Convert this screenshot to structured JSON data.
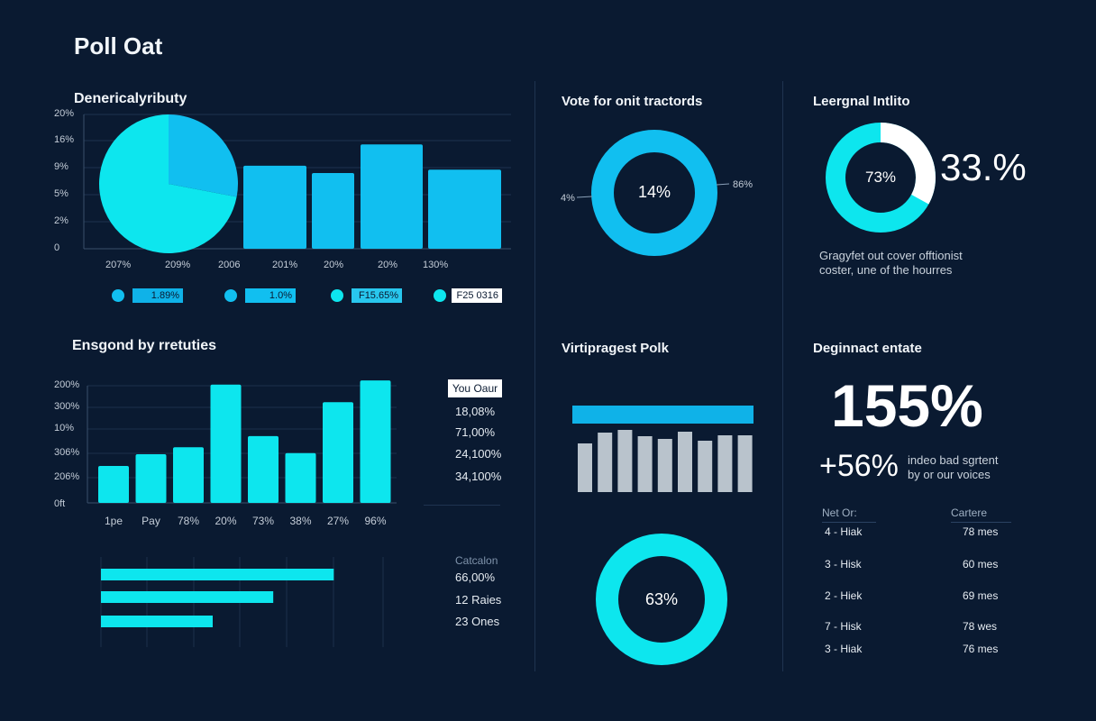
{
  "page_title": "Poll Oat",
  "colors": {
    "background": "#0a1a31",
    "cyan": "#0de6ee",
    "blue": "#11bff0",
    "gray": "#b9c3cc",
    "white": "#ffffff"
  },
  "panel1": {
    "title": "Denericalyributy",
    "legend": [
      {
        "label": "1.89%",
        "box": "#0fb2e8",
        "text": "#0a1a31"
      },
      {
        "label": "1.0%",
        "box": "#11bff0",
        "text": "#0a1a31"
      },
      {
        "label": "F15.65%",
        "box": "#28c7ee",
        "text": "#0a1a31"
      },
      {
        "label": "F25 0316",
        "box": "#ffffff",
        "text": "#0a1a31"
      }
    ]
  },
  "panel2": {
    "title": "Ensgond by rretuties",
    "side_header": "You Oaur",
    "side_values": [
      "18,08%",
      "71,00%",
      "24,100%",
      "34,100%"
    ],
    "hbar_header": "Catcalon",
    "hbar_values": [
      "66,00%",
      "12 Raies",
      "23 Ones"
    ]
  },
  "panel3": {
    "title": "Vote for onit tractords",
    "donut_center": "14%",
    "label_left": "4%",
    "label_right": "86%",
    "title2": "Virtipragest Polk",
    "donut2_center": "63%"
  },
  "panel4": {
    "title": "Leergnal Intlito",
    "donut_center": "73%",
    "big_value": "33.%",
    "description": [
      "Gragyfet out cover offtionist",
      "coster, une of the hourres"
    ],
    "title2": "Deginnact entate",
    "hero_value": "155%",
    "delta": "+56%",
    "delta_text": [
      "indeo bad sgrtent",
      "by or our voices"
    ],
    "table": {
      "headers": [
        "Net Or:",
        "Cartere"
      ],
      "rows": [
        [
          "4 - Hiak",
          "78 mes"
        ],
        [
          "3 - Hisk",
          "60 mes"
        ],
        [
          "2 - Hiek",
          "69 mes"
        ],
        [
          "7 - Hisk",
          "78 wes"
        ],
        [
          "3 - Hiak",
          "76 mes"
        ]
      ]
    }
  },
  "chart_data": [
    {
      "type": "bar",
      "title": "Denericalyributy",
      "yticks": [
        "0",
        "2%",
        "5%",
        "9%",
        "16%",
        "20%"
      ],
      "ytick_values": [
        0,
        2,
        5,
        9,
        16,
        20
      ],
      "ylim": [
        0,
        20
      ],
      "xticks": [
        "207%",
        "209%",
        "2006",
        "201%",
        "20%",
        "20%",
        "130%"
      ],
      "values": [
        9.5,
        8.2,
        15,
        8.7
      ],
      "grid": true
    },
    {
      "type": "pie",
      "values": [
        72,
        28
      ],
      "colors": [
        "#0de6ee",
        "#11bff0"
      ]
    },
    {
      "type": "bar",
      "title": "Ensgond by rretuties",
      "yticks": [
        "0ft",
        "206%",
        "306%",
        "10%",
        "300%",
        "200%"
      ],
      "ylim": [
        0,
        200
      ],
      "categories": [
        "1pe",
        "Pay",
        "78%",
        "20%",
        "73%",
        "38%",
        "27%",
        "96%"
      ],
      "values": [
        63,
        83,
        95,
        202,
        114,
        85,
        172,
        209
      ],
      "grid": true
    },
    {
      "type": "bar",
      "orientation": "horizontal",
      "values": [
        5.0,
        3.7,
        2.4
      ],
      "xlim": [
        0,
        6
      ],
      "grid": true
    },
    {
      "type": "pie",
      "donut": true,
      "title": "Vote for onit tractords",
      "values": [
        100
      ],
      "center_label": "14%"
    },
    {
      "type": "bar",
      "title": "Virtipragest Polk",
      "header_bar": 1,
      "values": [
        54,
        66,
        69,
        62,
        59,
        67,
        57,
        63,
        63
      ]
    },
    {
      "type": "pie",
      "donut": true,
      "values": [
        100
      ],
      "center_label": "63%"
    },
    {
      "type": "pie",
      "donut": true,
      "title": "Leergnal Intlito",
      "values": [
        33,
        67
      ],
      "colors": [
        "#ffffff",
        "#0de6ee"
      ],
      "center_label": "73%"
    }
  ]
}
